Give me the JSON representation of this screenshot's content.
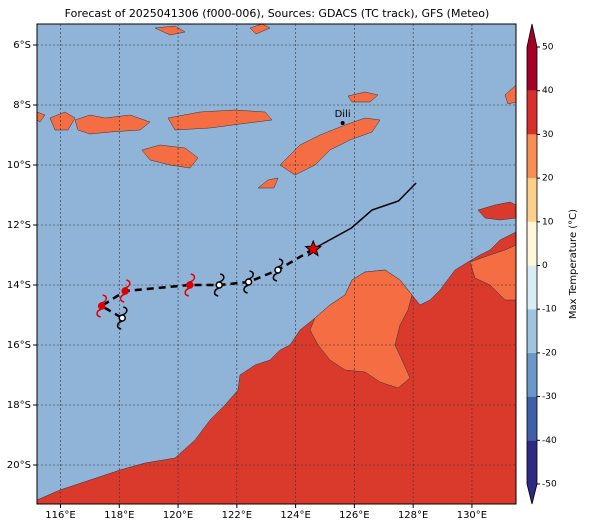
{
  "title": "Forecast of 2025041306 (f000-006), Sources: GDACS (TC track), GFS (Meteo)",
  "map": {
    "lon_range": [
      115.2,
      131.5
    ],
    "lat_range": [
      -5.3,
      -21.3
    ],
    "lon_ticks": [
      {
        "value": 116,
        "label": "116°E"
      },
      {
        "value": 118,
        "label": "118°E"
      },
      {
        "value": 120,
        "label": "120°E"
      },
      {
        "value": 122,
        "label": "122°E"
      },
      {
        "value": 124,
        "label": "124°E"
      },
      {
        "value": 126,
        "label": "126°E"
      },
      {
        "value": 128,
        "label": "128°E"
      },
      {
        "value": 130,
        "label": "130°E"
      }
    ],
    "lat_ticks": [
      {
        "value": -6,
        "label": "6°S"
      },
      {
        "value": -8,
        "label": "8°S"
      },
      {
        "value": -10,
        "label": "10°S"
      },
      {
        "value": -12,
        "label": "12°S"
      },
      {
        "value": -14,
        "label": "14°S"
      },
      {
        "value": -16,
        "label": "16°S"
      },
      {
        "value": -18,
        "label": "18°S"
      },
      {
        "value": -20,
        "label": "20°S"
      }
    ],
    "city": {
      "name": "Dili",
      "lon": 125.6,
      "lat": -8.6
    }
  },
  "track": {
    "forecast_lon": [
      124.6,
      123.4,
      122.4,
      121.4,
      120.4,
      118.2,
      117.4,
      118.1
    ],
    "forecast_lat": [
      -12.8,
      -13.5,
      -13.9,
      -14.0,
      -14.0,
      -14.2,
      -14.7,
      -15.1
    ],
    "past_lon": [
      124.6,
      125.9,
      126.6,
      127.5,
      128.1
    ],
    "past_lat": [
      -12.8,
      -12.1,
      -11.5,
      -11.2,
      -10.6
    ],
    "symbols": [
      {
        "lon": 117.4,
        "lat": -14.7,
        "color": "#e00000"
      },
      {
        "lon": 118.2,
        "lat": -14.2,
        "color": "#e00000"
      },
      {
        "lon": 120.4,
        "lat": -14.0,
        "color": "#e00000"
      },
      {
        "lon": 118.1,
        "lat": -15.1,
        "color": "#000000"
      },
      {
        "lon": 121.4,
        "lat": -14.0,
        "color": "#000000"
      },
      {
        "lon": 122.4,
        "lat": -13.9,
        "color": "#000000"
      },
      {
        "lon": 123.4,
        "lat": -13.5,
        "color": "#000000"
      }
    ],
    "current": {
      "lon": 124.6,
      "lat": -12.8,
      "color": "#e00000"
    }
  },
  "colorbar": {
    "label": "Max Temperature (°C)",
    "lim": [
      -50,
      50
    ],
    "ticks": [
      50,
      40,
      30,
      20,
      10,
      0,
      -10,
      -20,
      -30,
      -40,
      -50
    ],
    "colors": [
      "#2d2a85",
      "#3f5fa8",
      "#6b98c8",
      "#9ec4e0",
      "#d8ecf4",
      "#fff8d8",
      "#fdcf8a",
      "#f78e52",
      "#d7302a",
      "#a50026"
    ]
  }
}
